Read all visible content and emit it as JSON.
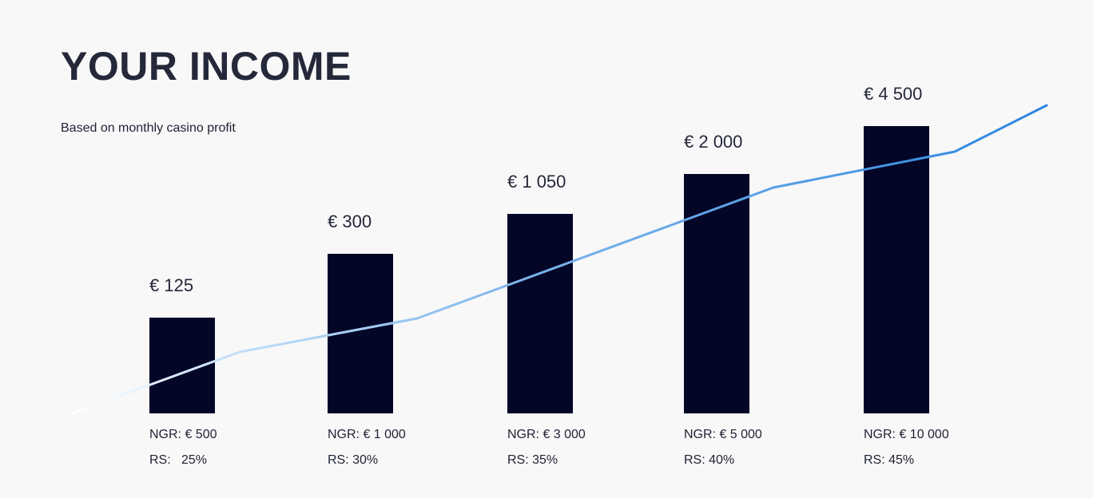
{
  "header": {
    "title": "YOUR INCOME",
    "subtitle": "Based on monthly casino profit"
  },
  "colors": {
    "bar": "#040628",
    "trend_light": "#e3f0fc",
    "trend_dark": "#2f86df",
    "text": "#252839"
  },
  "chart_data": {
    "type": "bar",
    "categories": [
      "NGR: € 500",
      "NGR: € 1 000",
      "NGR: € 3 000",
      "NGR: € 5 000",
      "NGR: € 10 000"
    ],
    "values": [
      125,
      300,
      1050,
      2000,
      4500
    ],
    "value_labels": [
      "€ 125",
      "€ 300",
      "€ 1 050",
      "€ 2 000",
      "€ 4 500"
    ],
    "rs_labels": [
      "RS:   25%",
      "RS: 30%",
      "RS: 35%",
      "RS: 40%",
      "RS: 45%"
    ],
    "trend_line": true,
    "grid": false
  }
}
